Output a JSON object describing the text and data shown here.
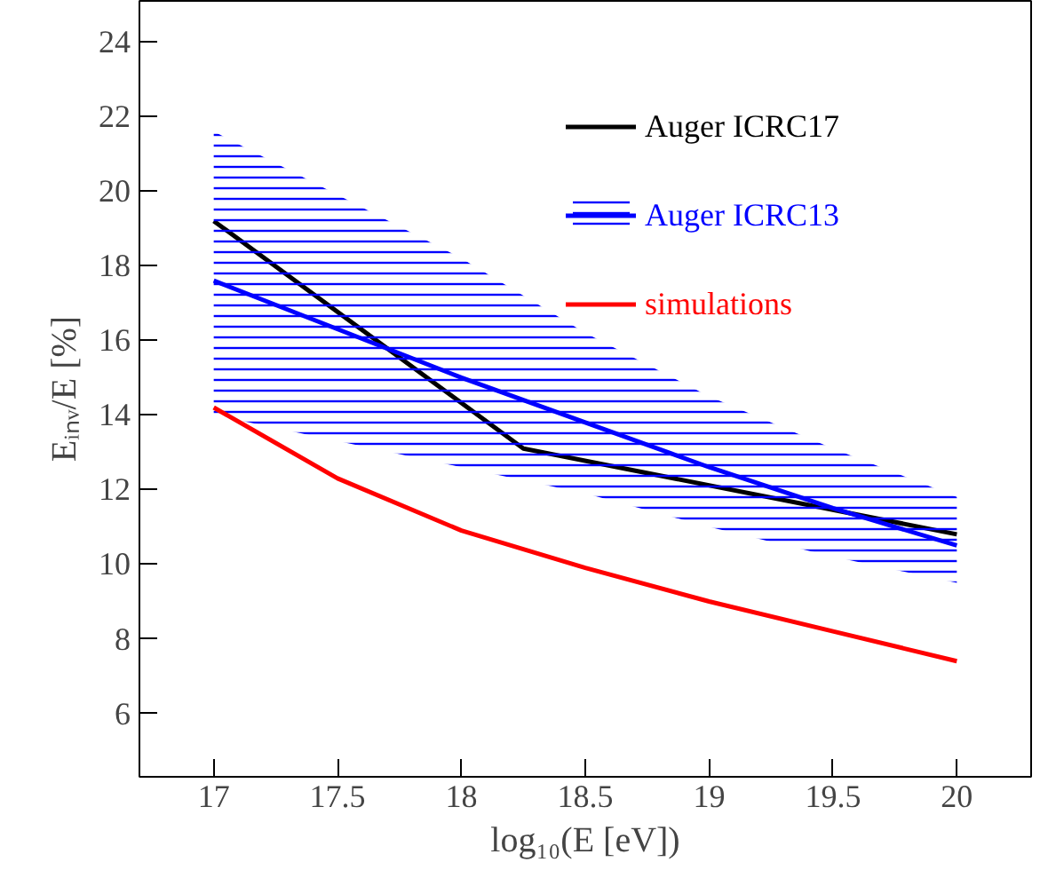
{
  "chart_data": {
    "type": "line",
    "xlabel": "log₁₀(E [eV])",
    "ylabel": "Eᵢₙᵥ/E [%]",
    "xlim": [
      16.7,
      20.3
    ],
    "ylim": [
      4.3,
      25.1
    ],
    "xticks": [
      17,
      17.5,
      18,
      18.5,
      19,
      19.5,
      20
    ],
    "yticks": [
      6,
      8,
      10,
      12,
      14,
      16,
      18,
      20,
      22,
      24
    ],
    "grid": false,
    "legend": "top right",
    "marker": "none",
    "line_style": "solid",
    "series": [
      {
        "name": "Auger ICRC17",
        "color": "#000000",
        "x": [
          17,
          18.25,
          20
        ],
        "values": [
          19.2,
          13.1,
          10.8
        ]
      },
      {
        "name": "Auger ICRC13",
        "color": "#0000ff",
        "x": [
          17,
          17.5,
          18,
          18.5,
          19,
          19.5,
          20
        ],
        "values": [
          17.6,
          16.3,
          15.0,
          13.8,
          12.6,
          11.5,
          10.5
        ],
        "lower": [
          14.0,
          13.3,
          12.6,
          11.9,
          11.0,
          10.2,
          9.5
        ],
        "upper": [
          21.6,
          19.9,
          18.2,
          16.2,
          14.5,
          13.1,
          11.8
        ]
      },
      {
        "name": "simulations",
        "color": "#ff0000",
        "x": [
          17,
          17.5,
          18,
          18.5,
          19,
          19.5,
          20
        ],
        "values": [
          14.2,
          12.3,
          10.9,
          9.9,
          9.0,
          8.2,
          7.4
        ]
      }
    ]
  }
}
